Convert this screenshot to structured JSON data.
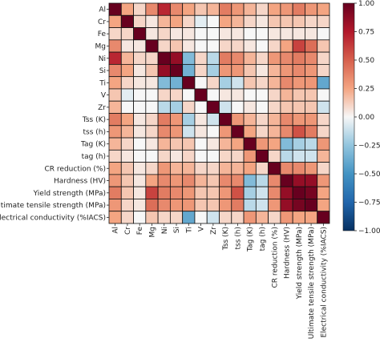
{
  "chart_data": {
    "type": "heatmap",
    "labels": [
      "Al",
      "Cr",
      "Fe",
      "Mg",
      "Ni",
      "Si",
      "Ti",
      "V",
      "Zr",
      "Tss (K)",
      "tss (h)",
      "Tag (K)",
      "tag (h)",
      "CR reduction (%)",
      "Hardness (HV)",
      "Yield strength (MPa)",
      "Ultimate tensile strength (MPa)",
      "Electrical conductivity (%IACS)"
    ],
    "matrix": [
      [
        1.0,
        0.25,
        0.1,
        0.35,
        0.7,
        0.35,
        0.25,
        0.15,
        0.2,
        0.4,
        0.3,
        0.2,
        0.1,
        0.25,
        0.3,
        0.4,
        0.3,
        0.25
      ],
      [
        0.25,
        1.0,
        0.1,
        0.05,
        0.2,
        0.25,
        0.1,
        -0.05,
        0.0,
        0.25,
        0.2,
        0.1,
        0.05,
        0.15,
        0.15,
        0.15,
        0.1,
        0.1
      ],
      [
        0.1,
        0.1,
        1.0,
        0.05,
        0.1,
        0.05,
        0.05,
        0.0,
        0.0,
        0.05,
        0.05,
        0.0,
        0.0,
        0.05,
        0.05,
        0.05,
        0.05,
        0.0
      ],
      [
        0.35,
        0.05,
        0.05,
        1.0,
        0.1,
        0.15,
        0.05,
        0.0,
        0.0,
        0.1,
        0.1,
        0.05,
        0.0,
        0.1,
        0.25,
        0.6,
        0.45,
        0.15
      ],
      [
        0.7,
        0.2,
        0.1,
        0.1,
        1.0,
        0.85,
        -0.3,
        0.1,
        -0.15,
        0.4,
        0.35,
        0.2,
        0.1,
        0.3,
        0.35,
        0.4,
        0.35,
        0.1
      ],
      [
        0.35,
        0.25,
        0.05,
        0.15,
        0.85,
        1.0,
        -0.35,
        0.1,
        -0.2,
        0.3,
        0.3,
        0.15,
        0.05,
        0.2,
        0.3,
        0.35,
        0.3,
        0.1
      ],
      [
        0.25,
        0.1,
        0.05,
        0.05,
        -0.3,
        -0.35,
        1.0,
        0.0,
        0.1,
        -0.2,
        -0.1,
        0.15,
        0.1,
        0.2,
        0.35,
        0.3,
        0.3,
        -0.4
      ],
      [
        0.15,
        -0.05,
        0.0,
        0.0,
        0.1,
        0.1,
        0.0,
        1.0,
        0.0,
        0.05,
        0.05,
        0.0,
        0.0,
        0.1,
        0.2,
        0.15,
        0.15,
        0.0
      ],
      [
        0.2,
        0.0,
        0.0,
        0.0,
        -0.15,
        -0.2,
        0.1,
        0.0,
        1.0,
        -0.1,
        0.0,
        0.05,
        0.0,
        0.1,
        0.15,
        0.15,
        0.15,
        -0.1
      ],
      [
        0.4,
        0.25,
        0.05,
        0.1,
        0.4,
        0.3,
        -0.2,
        0.05,
        -0.1,
        1.0,
        0.3,
        0.2,
        0.1,
        0.2,
        0.35,
        0.3,
        0.3,
        0.1
      ],
      [
        0.3,
        0.2,
        0.05,
        0.1,
        0.35,
        0.3,
        -0.1,
        0.05,
        0.0,
        0.3,
        1.0,
        0.25,
        0.1,
        0.2,
        0.35,
        0.55,
        0.4,
        0.1
      ],
      [
        0.2,
        0.1,
        0.0,
        0.05,
        0.2,
        0.15,
        0.15,
        0.0,
        0.05,
        0.2,
        0.25,
        1.0,
        0.3,
        0.25,
        -0.3,
        -0.2,
        -0.15,
        0.3
      ],
      [
        0.1,
        0.05,
        0.0,
        0.0,
        0.1,
        0.05,
        0.1,
        0.0,
        0.0,
        0.1,
        0.1,
        0.3,
        1.0,
        0.1,
        -0.15,
        -0.1,
        -0.1,
        0.2
      ],
      [
        0.25,
        0.15,
        0.05,
        0.1,
        0.3,
        0.2,
        0.2,
        0.1,
        0.1,
        0.2,
        0.2,
        0.25,
        0.1,
        1.0,
        0.35,
        0.35,
        0.3,
        0.1
      ],
      [
        0.3,
        0.15,
        0.05,
        0.25,
        0.35,
        0.3,
        0.35,
        0.2,
        0.15,
        0.35,
        0.35,
        -0.3,
        -0.15,
        0.35,
        1.0,
        0.85,
        0.85,
        0.3
      ],
      [
        0.4,
        0.15,
        0.05,
        0.6,
        0.4,
        0.35,
        0.3,
        0.15,
        0.15,
        0.3,
        0.55,
        -0.2,
        -0.1,
        0.35,
        0.85,
        1.0,
        0.95,
        0.25
      ],
      [
        0.3,
        0.1,
        0.05,
        0.45,
        0.35,
        0.3,
        0.3,
        0.15,
        0.15,
        0.3,
        0.4,
        -0.15,
        -0.1,
        0.3,
        0.85,
        0.95,
        1.0,
        0.25
      ],
      [
        0.25,
        0.1,
        0.0,
        0.15,
        0.1,
        0.1,
        -0.4,
        0.0,
        -0.1,
        0.1,
        0.1,
        0.3,
        0.2,
        0.1,
        0.3,
        0.25,
        0.25,
        1.0
      ]
    ],
    "colorbar": {
      "range": [
        -1,
        1
      ],
      "ticks": [
        "1.00",
        "0.75",
        "0.50",
        "0.25",
        "0.00",
        "−0.25",
        "−0.50",
        "−0.75",
        "−1.00"
      ],
      "colormap": "RdBu_r"
    },
    "grid": true,
    "title": "",
    "xlabel": "",
    "ylabel": ""
  }
}
